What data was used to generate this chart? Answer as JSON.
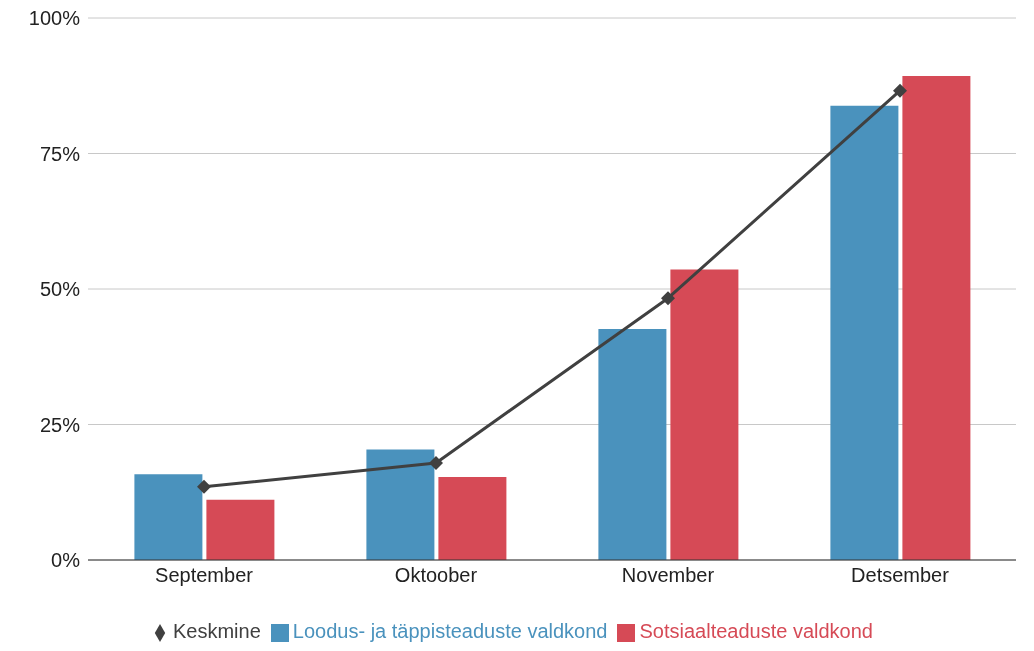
{
  "chart_data": {
    "type": "bar",
    "categories": [
      "September",
      "Oktoober",
      "November",
      "Detsember"
    ],
    "series": [
      {
        "name": "Loodus- ja täppisteaduste valdkond",
        "color": "#4a92bd",
        "values": [
          15.8,
          20.4,
          42.6,
          83.8
        ]
      },
      {
        "name": "Sotsiaalteaduste valdkond",
        "color": "#d64a56",
        "values": [
          11.1,
          15.3,
          53.6,
          89.3
        ]
      },
      {
        "name": "Keskmine",
        "type": "line",
        "color": "#404040",
        "values": [
          13.5,
          17.9,
          48.3,
          86.6
        ],
        "marker": "diamond"
      }
    ],
    "ylim": [
      0,
      100
    ],
    "yticks": [
      {
        "value": 0,
        "label": "0%"
      },
      {
        "value": 25,
        "label": "25%"
      },
      {
        "value": 50,
        "label": "50%"
      },
      {
        "value": 75,
        "label": "75%"
      },
      {
        "value": 100,
        "label": "100%"
      }
    ],
    "grid": "y",
    "legend": "bottom"
  }
}
